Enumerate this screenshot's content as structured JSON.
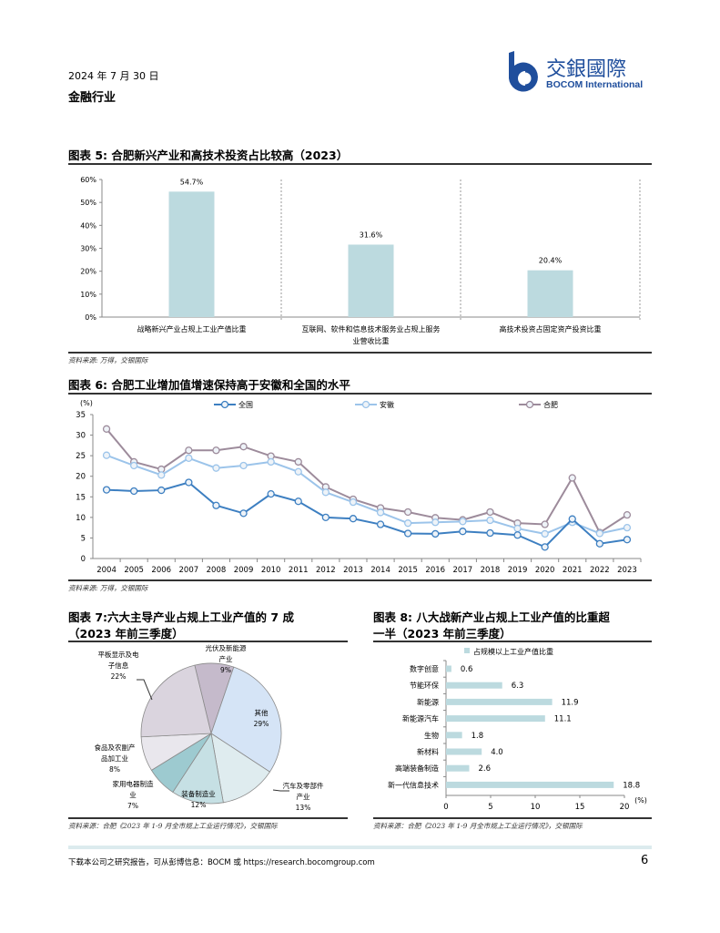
{
  "header": {
    "date": "2024 年 7 月 30 日",
    "sector": "金融行业",
    "logo": {
      "cn": "交銀國際",
      "en": "BOCOM International",
      "color": "#1f4e9c"
    }
  },
  "chart_data": [
    {
      "id": "fig5",
      "type": "bar",
      "title": "图表 5: 合肥新兴产业和高技术投资占比较高（2023）",
      "categories": [
        "战略新兴产业占规上工业产值比重",
        "互联网、软件和信息技术服务业占规上服务业营收比重",
        "高技术投资占固定资产投资比重"
      ],
      "category_lines": [
        [
          "战略新兴产业占规上工业产值比重"
        ],
        [
          "互联网、软件和信息技术服务业占规上服务",
          "业营收比重"
        ],
        [
          "高技术投资占固定资产投资比重"
        ]
      ],
      "values": [
        54.7,
        31.6,
        20.4
      ],
      "data_labels": [
        "54.7%",
        "31.6%",
        "20.4%"
      ],
      "ylim": [
        0,
        60
      ],
      "yticks": [
        "0%",
        "10%",
        "20%",
        "30%",
        "40%",
        "50%",
        "60%"
      ],
      "color": "#bcdadf",
      "source": "资料来源: 万得，交银国际"
    },
    {
      "id": "fig6",
      "type": "line",
      "title": "图表 6: 合肥工业增加值增速保持高于安徽和全国的水平",
      "ylabel": "(%)",
      "ylim": [
        0,
        35
      ],
      "yticks": [
        0,
        5,
        10,
        15,
        20,
        25,
        30,
        35
      ],
      "legend": "top",
      "x": [
        "2004",
        "2005",
        "2006",
        "2007",
        "2008",
        "2009",
        "2010",
        "2011",
        "2012",
        "2013",
        "2014",
        "2015",
        "2016",
        "2017",
        "2018",
        "2019",
        "2020",
        "2021",
        "2022",
        "2023"
      ],
      "series": [
        {
          "name": "全国",
          "color": "#3d7fc1",
          "values": [
            16.7,
            16.4,
            16.6,
            18.5,
            12.9,
            11.0,
            15.7,
            13.9,
            10.0,
            9.7,
            8.3,
            6.1,
            6.0,
            6.6,
            6.2,
            5.7,
            2.8,
            9.6,
            3.6,
            4.6
          ]
        },
        {
          "name": "安徽",
          "color": "#9cc4ea",
          "values": [
            25.1,
            22.6,
            20.3,
            24.4,
            22.0,
            22.6,
            23.5,
            21.1,
            16.1,
            13.7,
            11.2,
            8.6,
            8.8,
            9.0,
            9.3,
            7.3,
            6.0,
            8.8,
            6.1,
            7.5
          ]
        },
        {
          "name": "合肥",
          "color": "#9d8b9b",
          "values": [
            31.5,
            23.5,
            21.7,
            26.3,
            26.3,
            27.2,
            24.9,
            23.5,
            17.4,
            14.4,
            12.3,
            11.3,
            9.9,
            9.4,
            11.3,
            8.6,
            8.3,
            19.6,
            6.3,
            10.6
          ]
        }
      ],
      "source": "资料来源: 万得，交银国际"
    },
    {
      "id": "fig7",
      "type": "pie",
      "title_lines": [
        "图表 7:六大主导产业占规上工业产值的 7 成",
        "（2023 年前三季度）"
      ],
      "slices": [
        {
          "label_lines": [
            "光伏及新能源",
            "产业"
          ],
          "value": 9,
          "pct": "9%",
          "color": "#c5bacb"
        },
        {
          "label_lines": [
            "其他"
          ],
          "value": 29,
          "pct": "29%",
          "color": "#d5e4f6"
        },
        {
          "label_lines": [
            "汽车及零部件",
            "产业"
          ],
          "value": 13,
          "pct": "13%",
          "color": "#dfecef"
        },
        {
          "label_lines": [
            "装备制造业"
          ],
          "value": 12,
          "pct": "12%",
          "color": "#c6e0e4"
        },
        {
          "label_lines": [
            "家用电器制造",
            "业"
          ],
          "value": 7,
          "pct": "7%",
          "color": "#9dcad0"
        },
        {
          "label_lines": [
            "食品及农副产",
            "品加工业"
          ],
          "value": 8,
          "pct": "8%",
          "color": "#e9e7ed"
        },
        {
          "label_lines": [
            "平板显示及电",
            "子信息"
          ],
          "value": 22,
          "pct": "22%",
          "color": "#dad4de"
        }
      ],
      "source": "资料来源：合肥《2023 年 1-9 月全市规上工业运行情况》，交银国际"
    },
    {
      "id": "fig8",
      "type": "bar",
      "orientation": "horizontal",
      "title_lines": [
        "图表 8: 八大战新产业占规上工业产值的比重超",
        "一半（2023 年前三季度）"
      ],
      "legend": "占规模以上工业产值比重",
      "color": "#bcdadf",
      "categories": [
        "数字创意",
        "节能环保",
        "新能源",
        "新能源汽车",
        "生物",
        "新材料",
        "高端装备制造",
        "新一代信息技术"
      ],
      "values": [
        0.6,
        6.3,
        11.9,
        11.1,
        1.8,
        4.0,
        2.6,
        18.8
      ],
      "data_labels": [
        "0.6",
        "6.3",
        "11.9",
        "11.1",
        "1.8",
        "4.0",
        "2.6",
        "18.8"
      ],
      "xlim": [
        0,
        20
      ],
      "xticks": [
        0,
        5,
        10,
        15,
        20
      ],
      "xunit": "(%)",
      "source": "资料来源：合肥《2023 年 1-9 月全市规上工业运行情况》，交银国际"
    }
  ],
  "footer": {
    "text": "下载本公司之研究报告，可从彭博信息：BOCM 或 https://research.bocomgroup.com",
    "page": "6"
  }
}
